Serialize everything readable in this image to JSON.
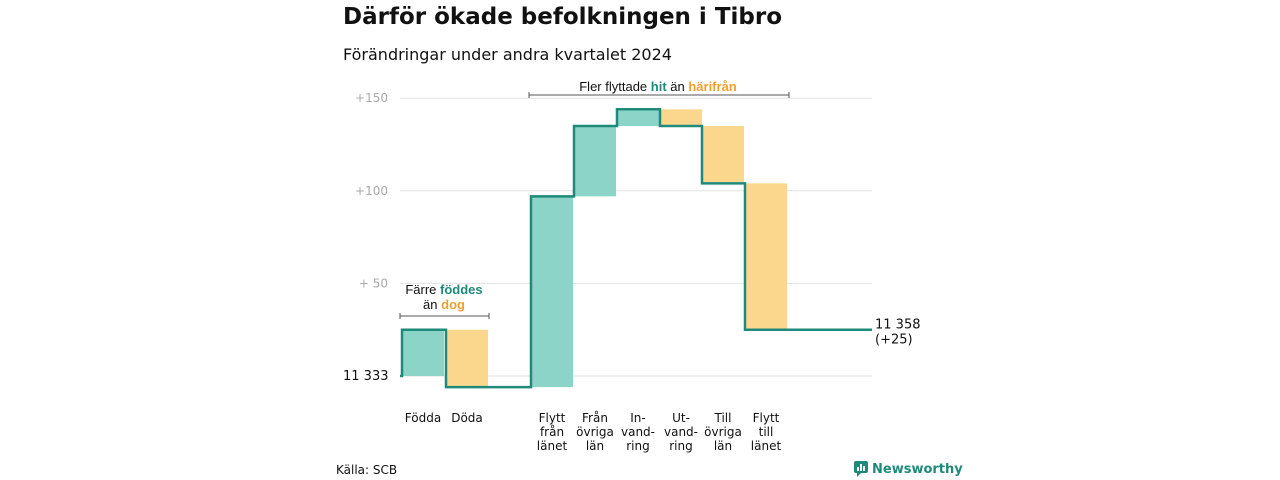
{
  "title": "Därför ökade befolkningen i Tibro",
  "subtitle": "Förändringar under andra kvartalet 2024",
  "source": "Källa: SCB",
  "brand": "Newsworthy",
  "colors": {
    "increase": "#8dd4c8",
    "decrease": "#fbd78e",
    "line": "#1f8a7a",
    "grid": "#e2e2e2",
    "teal_text": "#1f8a7a",
    "orange_text": "#f0a030"
  },
  "chart_data": {
    "type": "waterfall",
    "start_value": 11333,
    "start_label": "11  333",
    "end_value": 11358,
    "end_label": "11 358",
    "end_change_label": "(+25)",
    "y_ticks": [
      {
        "value": 50,
        "label": "+  50"
      },
      {
        "value": 100,
        "label": "+100"
      },
      {
        "value": 150,
        "label": "+150"
      }
    ],
    "ylim": [
      -7,
      150
    ],
    "bars": [
      {
        "label_lines": [
          "Födda"
        ],
        "delta": 25
      },
      {
        "label_lines": [
          "Döda"
        ],
        "delta": -31
      },
      {
        "label_lines": [
          "Flytt",
          "från",
          "länet"
        ],
        "delta": 103
      },
      {
        "label_lines": [
          "Från",
          "övriga",
          "län"
        ],
        "delta": 38
      },
      {
        "label_lines": [
          "In-",
          "vand-",
          "ring"
        ],
        "delta": 9
      },
      {
        "label_lines": [
          "Ut-",
          "vand-",
          "ring"
        ],
        "delta": -9
      },
      {
        "label_lines": [
          "Till",
          "övriga",
          "län"
        ],
        "delta": -31
      },
      {
        "label_lines": [
          "Flytt",
          "till",
          "länet"
        ],
        "delta": -79
      }
    ],
    "annotations": [
      {
        "id": "births",
        "lines": [
          [
            {
              "text": "Färre ",
              "style": "plain"
            },
            {
              "text": "föddes",
              "style": "teal"
            }
          ],
          [
            {
              "text": "än ",
              "style": "plain"
            },
            {
              "text": "dog",
              "style": "orange"
            }
          ]
        ]
      },
      {
        "id": "migration",
        "lines": [
          [
            {
              "text": "Fler flyttade ",
              "style": "plain"
            },
            {
              "text": "hit",
              "style": "teal"
            },
            {
              "text": "  än ",
              "style": "plain"
            },
            {
              "text": "härifrån",
              "style": "orange"
            }
          ]
        ]
      }
    ]
  }
}
